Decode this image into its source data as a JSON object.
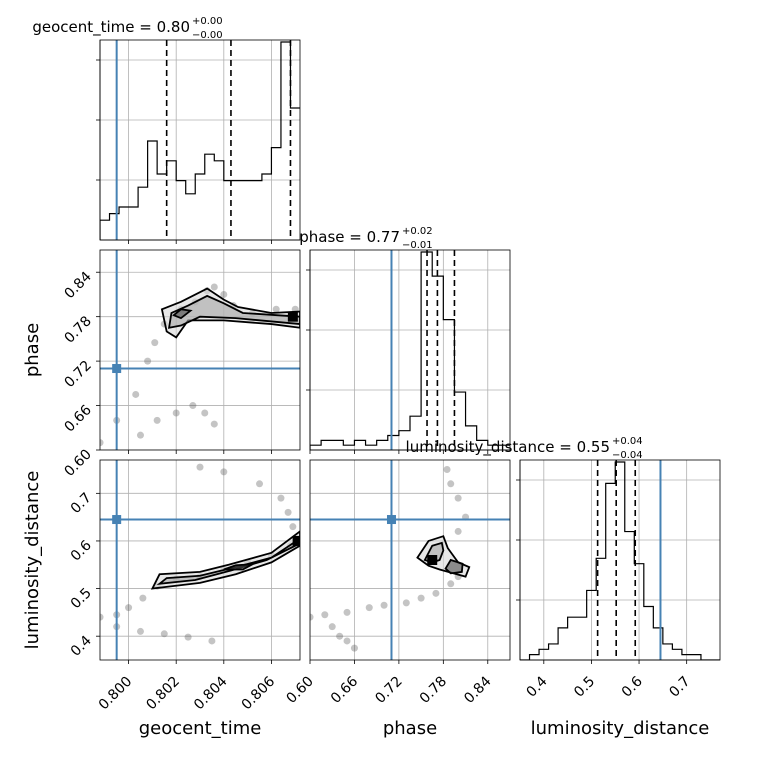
{
  "chart_data": {
    "type": "corner",
    "parameters": [
      "geocent_time",
      "phase",
      "luminosity_distance"
    ],
    "truth_color": "#4682b4",
    "truths": {
      "geocent_time": 0.7995,
      "phase": 0.71,
      "luminosity_distance": 0.645
    },
    "ranges": {
      "geocent_time": [
        0.7988,
        0.8072
      ],
      "phase": [
        0.6,
        0.87
      ],
      "luminosity_distance": [
        0.35,
        0.77
      ]
    },
    "ticks": {
      "geocent_time": [
        0.8,
        0.802,
        0.804,
        0.806
      ],
      "phase": [
        0.6,
        0.66,
        0.72,
        0.78,
        0.84
      ],
      "luminosity_distance": [
        0.4,
        0.5,
        0.6,
        0.7
      ]
    },
    "tick_labels": {
      "geocent_time": [
        "0.800",
        "0.802",
        "0.804",
        "0.806"
      ],
      "phase": [
        "0.60",
        "0.66",
        "0.72",
        "0.78",
        "0.84"
      ],
      "luminosity_distance": [
        "0.4",
        "0.5",
        "0.6",
        "0.7"
      ]
    },
    "titles": {
      "geocent_time": {
        "main": "geocent_time = 0.80",
        "plus": "+0.00",
        "minus": "−0.00"
      },
      "phase": {
        "main": "phase = 0.77",
        "plus": "+0.02",
        "minus": "−0.01"
      },
      "luminosity_distance": {
        "main": "luminosity_distance = 0.55",
        "plus": "+0.04",
        "minus": "−0.04"
      }
    },
    "quantiles": {
      "geocent_time": [
        0.8016,
        0.8043,
        0.8068
      ],
      "phase": [
        0.758,
        0.772,
        0.795
      ],
      "luminosity_distance": [
        0.513,
        0.552,
        0.592
      ]
    },
    "histograms": {
      "geocent_time": {
        "edges": [
          0.7988,
          0.7992,
          0.7996,
          0.8,
          0.8004,
          0.8008,
          0.8012,
          0.8016,
          0.802,
          0.8024,
          0.8028,
          0.8032,
          0.8036,
          0.804,
          0.8044,
          0.8048,
          0.8052,
          0.8056,
          0.806,
          0.8064,
          0.8068,
          0.8072
        ],
        "counts": [
          3,
          4,
          5,
          5,
          8,
          15,
          10,
          12,
          9,
          7,
          10,
          13,
          12,
          9,
          9,
          9,
          9,
          10,
          14,
          30,
          20
        ]
      },
      "phase": {
        "edges": [
          0.6,
          0.615,
          0.63,
          0.645,
          0.66,
          0.675,
          0.69,
          0.705,
          0.72,
          0.735,
          0.75,
          0.765,
          0.78,
          0.795,
          0.81,
          0.825,
          0.84,
          0.855,
          0.87
        ],
        "counts": [
          1,
          2,
          2,
          1,
          2,
          1,
          2,
          3,
          4,
          7,
          41,
          36,
          27,
          12,
          5,
          2,
          1,
          1
        ]
      },
      "luminosity_distance": {
        "edges": [
          0.35,
          0.37,
          0.39,
          0.41,
          0.43,
          0.45,
          0.47,
          0.49,
          0.51,
          0.53,
          0.55,
          0.57,
          0.59,
          0.61,
          0.63,
          0.65,
          0.67,
          0.69,
          0.71,
          0.73,
          0.75,
          0.77
        ],
        "counts": [
          0,
          1,
          2,
          3,
          6,
          8,
          8,
          13,
          19,
          33,
          37,
          24,
          18,
          10,
          6,
          3,
          2,
          1,
          1,
          0,
          0
        ]
      }
    },
    "contours": {
      "phase_vs_geocent_time": [
        [
          [
            0.8016,
            0.76
          ],
          [
            0.8014,
            0.79
          ],
          [
            0.8022,
            0.8
          ],
          [
            0.8033,
            0.818
          ],
          [
            0.804,
            0.803
          ],
          [
            0.8046,
            0.793
          ],
          [
            0.806,
            0.785
          ],
          [
            0.8072,
            0.787
          ],
          [
            0.8072,
            0.765
          ],
          [
            0.806,
            0.77
          ],
          [
            0.804,
            0.775
          ],
          [
            0.8025,
            0.775
          ],
          [
            0.802,
            0.752
          ],
          [
            0.8016,
            0.76
          ]
        ],
        [
          [
            0.8017,
            0.765
          ],
          [
            0.8018,
            0.785
          ],
          [
            0.8025,
            0.795
          ],
          [
            0.8033,
            0.808
          ],
          [
            0.804,
            0.798
          ],
          [
            0.8048,
            0.785
          ],
          [
            0.8072,
            0.78
          ],
          [
            0.8072,
            0.77
          ],
          [
            0.8045,
            0.778
          ],
          [
            0.803,
            0.78
          ],
          [
            0.8022,
            0.768
          ],
          [
            0.8017,
            0.765
          ]
        ],
        [
          [
            0.8019,
            0.782
          ],
          [
            0.8022,
            0.79
          ],
          [
            0.8026,
            0.788
          ],
          [
            0.8022,
            0.778
          ],
          [
            0.8019,
            0.782
          ]
        ]
      ],
      "luminosity_distance_vs_geocent_time": [
        [
          [
            0.801,
            0.5
          ],
          [
            0.8013,
            0.53
          ],
          [
            0.803,
            0.535
          ],
          [
            0.8042,
            0.55
          ],
          [
            0.806,
            0.575
          ],
          [
            0.8072,
            0.62
          ],
          [
            0.8072,
            0.59
          ],
          [
            0.806,
            0.555
          ],
          [
            0.8045,
            0.53
          ],
          [
            0.803,
            0.512
          ],
          [
            0.8015,
            0.503
          ],
          [
            0.801,
            0.5
          ]
        ],
        [
          [
            0.8013,
            0.51
          ],
          [
            0.8016,
            0.522
          ],
          [
            0.803,
            0.527
          ],
          [
            0.8045,
            0.545
          ],
          [
            0.806,
            0.565
          ],
          [
            0.8072,
            0.605
          ],
          [
            0.8072,
            0.595
          ],
          [
            0.8058,
            0.56
          ],
          [
            0.8043,
            0.538
          ],
          [
            0.8028,
            0.518
          ],
          [
            0.8013,
            0.51
          ]
        ],
        [
          [
            0.804,
            0.54
          ],
          [
            0.8045,
            0.549
          ],
          [
            0.8052,
            0.551
          ],
          [
            0.8048,
            0.54
          ],
          [
            0.804,
            0.54
          ]
        ]
      ],
      "luminosity_distance_vs_phase": [
        [
          [
            0.745,
            0.565
          ],
          [
            0.76,
            0.6
          ],
          [
            0.78,
            0.61
          ],
          [
            0.786,
            0.585
          ],
          [
            0.8,
            0.555
          ],
          [
            0.815,
            0.545
          ],
          [
            0.81,
            0.525
          ],
          [
            0.775,
            0.54
          ],
          [
            0.76,
            0.548
          ],
          [
            0.745,
            0.565
          ]
        ],
        [
          [
            0.755,
            0.56
          ],
          [
            0.765,
            0.59
          ],
          [
            0.778,
            0.596
          ],
          [
            0.78,
            0.58
          ],
          [
            0.775,
            0.56
          ],
          [
            0.765,
            0.555
          ],
          [
            0.755,
            0.56
          ]
        ],
        [
          [
            0.783,
            0.542
          ],
          [
            0.79,
            0.56
          ],
          [
            0.806,
            0.552
          ],
          [
            0.805,
            0.535
          ],
          [
            0.79,
            0.532
          ],
          [
            0.783,
            0.542
          ]
        ]
      ]
    },
    "scatter_tracks": {
      "phase_vs_geocent_time": [
        [
          0.7988,
          0.61
        ],
        [
          0.7995,
          0.64
        ],
        [
          0.8003,
          0.675
        ],
        [
          0.8008,
          0.72
        ],
        [
          0.8011,
          0.745
        ],
        [
          0.8015,
          0.77
        ],
        [
          0.8022,
          0.79
        ],
        [
          0.8028,
          0.8
        ],
        [
          0.8033,
          0.815
        ],
        [
          0.8036,
          0.82
        ],
        [
          0.804,
          0.81
        ],
        [
          0.8044,
          0.795
        ],
        [
          0.8052,
          0.785
        ],
        [
          0.8062,
          0.79
        ],
        [
          0.807,
          0.79
        ],
        [
          0.8005,
          0.62
        ],
        [
          0.8012,
          0.64
        ],
        [
          0.802,
          0.65
        ],
        [
          0.8027,
          0.66
        ],
        [
          0.8032,
          0.65
        ],
        [
          0.8036,
          0.635
        ]
      ],
      "luminosity_distance_vs_geocent_time": [
        [
          0.7988,
          0.44
        ],
        [
          0.7995,
          0.445
        ],
        [
          0.8,
          0.46
        ],
        [
          0.8006,
          0.48
        ],
        [
          0.8012,
          0.505
        ],
        [
          0.802,
          0.52
        ],
        [
          0.803,
          0.525
        ],
        [
          0.804,
          0.54
        ],
        [
          0.805,
          0.555
        ],
        [
          0.806,
          0.57
        ],
        [
          0.8068,
          0.59
        ],
        [
          0.8072,
          0.605
        ],
        [
          0.8069,
          0.63
        ],
        [
          0.8067,
          0.66
        ],
        [
          0.8064,
          0.69
        ],
        [
          0.8055,
          0.72
        ],
        [
          0.804,
          0.745
        ],
        [
          0.803,
          0.755
        ],
        [
          0.7995,
          0.42
        ],
        [
          0.8005,
          0.41
        ],
        [
          0.8015,
          0.405
        ],
        [
          0.8025,
          0.398
        ],
        [
          0.8035,
          0.39
        ]
      ],
      "luminosity_distance_vs_phase": [
        [
          0.6,
          0.44
        ],
        [
          0.62,
          0.445
        ],
        [
          0.65,
          0.45
        ],
        [
          0.68,
          0.46
        ],
        [
          0.7,
          0.465
        ],
        [
          0.73,
          0.47
        ],
        [
          0.75,
          0.48
        ],
        [
          0.77,
          0.49
        ],
        [
          0.79,
          0.51
        ],
        [
          0.8,
          0.525
        ],
        [
          0.8,
          0.62
        ],
        [
          0.81,
          0.65
        ],
        [
          0.8,
          0.69
        ],
        [
          0.79,
          0.72
        ],
        [
          0.785,
          0.75
        ],
        [
          0.63,
          0.42
        ],
        [
          0.64,
          0.4
        ],
        [
          0.65,
          0.39
        ],
        [
          0.66,
          0.375
        ]
      ]
    },
    "modes": {
      "phase_vs_geocent_time": [
        0.8069,
        0.78
      ],
      "luminosity_distance_vs_geocent_time": [
        0.8071,
        0.6
      ],
      "luminosity_distance_vs_phase": [
        0.765,
        0.56
      ]
    },
    "grid": true
  }
}
